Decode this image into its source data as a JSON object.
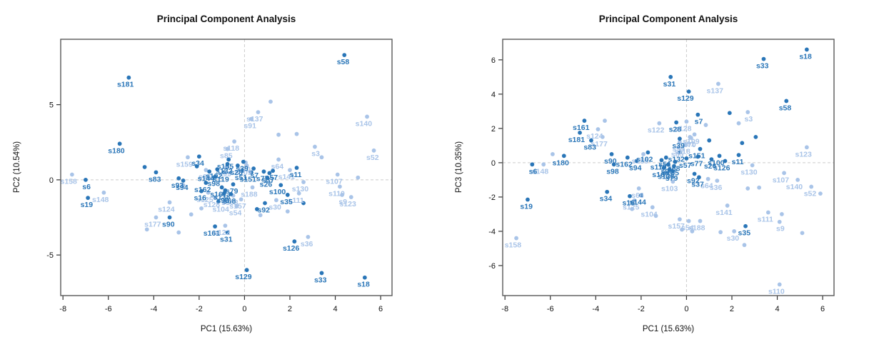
{
  "figure": {
    "background": "#ffffff",
    "colors": {
      "dark_group": "#2a76b8",
      "light_group": "#a9c4e8",
      "box_border": "#595959",
      "refline": "#cccccc",
      "tick_text": "#111111",
      "title_text": "#111111"
    }
  },
  "chart_data": [
    {
      "type": "scatter",
      "title": "Principal Component Analysis",
      "xlabel": "PC1 (15.63%)",
      "ylabel": "PC2 (10.54%)",
      "xlim": [
        -8.1,
        6.5
      ],
      "ylim": [
        -7.7,
        9.35
      ],
      "xticks": [
        -8,
        -6,
        -4,
        -2,
        0,
        2,
        4,
        6
      ],
      "yticks": [
        -5,
        0,
        5
      ],
      "reflines": {
        "x": 0,
        "y": 0
      },
      "grid": false,
      "legend": "none",
      "series": [
        {
          "name": "light-group",
          "color": "#a9c4e8",
          "points": [
            [
              "s158",
              -7.6,
              0.35
            ],
            [
              "s148",
              -6.2,
              -0.85
            ],
            [
              "s124",
              -3.3,
              -1.5
            ],
            [
              "s177",
              -3.9,
              -2.5
            ],
            [
              "s159",
              -2.5,
              1.5
            ],
            [
              "s118",
              -0.45,
              2.55
            ],
            [
              "s85",
              -0.75,
              2.05
            ],
            [
              "s91",
              0.3,
              4.05
            ],
            [
              "s137",
              0.6,
              4.5
            ],
            [
              "s140",
              5.4,
              4.2
            ],
            [
              "s52",
              5.7,
              1.95
            ],
            [
              "s3",
              3.1,
              2.2
            ],
            [
              "s64",
              1.5,
              1.35
            ],
            [
              "s141",
              2.0,
              0.65
            ],
            [
              "s107",
              4.1,
              0.35
            ],
            [
              "s110",
              4.2,
              -0.45
            ],
            [
              "s9",
              4.3,
              -1.0
            ],
            [
              "s123",
              4.7,
              -1.15
            ],
            [
              "s188",
              0.35,
              -0.5
            ],
            [
              "s122",
              -0.85,
              -3.05
            ],
            [
              "s36",
              2.8,
              -3.8
            ],
            [
              "s130",
              2.6,
              -0.15
            ],
            [
              "s109",
              0.1,
              0.95
            ],
            [
              "s70",
              0.05,
              1.15
            ],
            [
              "s128",
              -1.3,
              -1.2
            ],
            [
              "s54",
              -0.35,
              -1.75
            ],
            [
              "s104",
              -0.9,
              -1.5
            ],
            [
              "s157",
              -0.15,
              -1.3
            ],
            [
              "s125",
              -1.6,
              -0.85
            ],
            [
              "s111",
              2.4,
              -0.9
            ],
            [
              "s30",
              1.4,
              -1.35
            ],
            [
              "s103",
              -0.5,
              -1.05
            ],
            [
              "s66",
              -1.7,
              0.65
            ],
            [
              "s99",
              -0.8,
              0.85
            ],
            [
              1.15,
              5.2
            ],
            [
              -4.3,
              -3.3
            ],
            [
              -2.9,
              -3.5
            ],
            [
              1.5,
              3.0
            ],
            [
              2.3,
              3.05
            ],
            [
              3.4,
              1.5
            ],
            [
              -2.7,
              -0.35
            ],
            [
              -2.35,
              -2.3
            ],
            [
              0.7,
              -2.35
            ],
            [
              5.0,
              0.15
            ],
            [
              1.9,
              -2.1
            ],
            [
              -1.9,
              -1.9
            ]
          ]
        },
        {
          "name": "dark-group",
          "color": "#2a76b8",
          "points": [
            [
              "s58",
              4.4,
              8.3
            ],
            [
              "s181",
              -5.1,
              6.8
            ],
            [
              "s180",
              -5.5,
              2.4
            ],
            [
              "s83",
              -3.9,
              0.5
            ],
            [
              "s93",
              -2.9,
              0.1
            ],
            [
              "s94",
              -2.7,
              -0.05
            ],
            [
              "s6",
              -7.0,
              0.0
            ],
            [
              "s19",
              -6.9,
              -1.2
            ],
            [
              "s90",
              -3.3,
              -2.5
            ],
            [
              "s144",
              -1.55,
              0.55
            ],
            [
              "s162",
              -1.7,
              -0.2
            ],
            [
              "s16",
              -1.9,
              -0.75
            ],
            [
              "s161",
              -1.3,
              -3.1
            ],
            [
              "s31",
              -0.75,
              -3.5
            ],
            [
              "s129",
              0.1,
              -6.0
            ],
            [
              "s126",
              2.2,
              -4.1
            ],
            [
              "s33",
              3.4,
              -6.2
            ],
            [
              "s18",
              5.3,
              -6.5
            ],
            [
              "s100",
              1.6,
              -0.35
            ],
            [
              "s35",
              1.9,
              -1.0
            ],
            [
              "s92",
              0.9,
              -1.55
            ],
            [
              "s11",
              2.3,
              0.8
            ],
            [
              "s51",
              -0.1,
              0.6
            ],
            [
              "s119",
              -0.9,
              0.5
            ],
            [
              "s155",
              -0.7,
              1.35
            ],
            [
              "s132",
              -0.75,
              1.05
            ],
            [
              "s57",
              1.25,
              0.6
            ],
            [
              "s37",
              1.1,
              0.45
            ],
            [
              "s77",
              0.85,
              0.55
            ],
            [
              "s96",
              -0.9,
              -0.9
            ],
            [
              "s68",
              -0.6,
              -0.95
            ],
            [
              "s167",
              -1.0,
              -0.5
            ],
            [
              "s138",
              -0.85,
              -0.7
            ],
            [
              "s28",
              -0.3,
              0.95
            ],
            [
              "s39",
              -0.05,
              1.2
            ],
            [
              "s98",
              -1.3,
              0.2
            ],
            [
              "s79",
              -0.5,
              -0.3
            ],
            [
              "s151",
              0.3,
              0.5
            ],
            [
              "s26",
              1.0,
              0.15
            ],
            [
              "s102",
              -1.2,
              0.7
            ],
            [
              "s34",
              -2.0,
              1.55
            ],
            [
              "s7",
              0.4,
              0.75
            ],
            [
              -4.4,
              0.85
            ],
            [
              0.55,
              -1.95
            ],
            [
              2.6,
              -1.55
            ],
            [
              -1.15,
              -1.45
            ],
            [
              -2.1,
              0.9
            ]
          ]
        }
      ]
    },
    {
      "type": "scatter",
      "title": "Principal Component Analysis",
      "xlabel": "PC1 (15.63%)",
      "ylabel": "PC3 (10.35%)",
      "xlim": [
        -8.1,
        6.5
      ],
      "ylim": [
        -7.75,
        7.2
      ],
      "xticks": [
        -8,
        -6,
        -4,
        -2,
        0,
        2,
        4,
        6
      ],
      "yticks": [
        -6,
        -4,
        -2,
        0,
        2,
        4,
        6
      ],
      "reflines": {
        "x": 0,
        "y": 0
      },
      "grid": false,
      "legend": "none",
      "series": [
        {
          "name": "light-group",
          "color": "#a9c4e8",
          "points": [
            [
              "s158",
              -7.5,
              -4.4
            ],
            [
              "s148",
              -6.3,
              -0.1
            ],
            [
              "s124",
              -3.9,
              1.95
            ],
            [
              "s177",
              -3.7,
              1.5
            ],
            [
              "s128",
              0.0,
              2.4
            ],
            [
              "s137",
              1.4,
              4.6
            ],
            [
              "s3",
              2.7,
              2.95
            ],
            [
              "s123",
              5.3,
              0.9
            ],
            [
              "s107",
              4.3,
              -0.6
            ],
            [
              "s130",
              2.9,
              -0.15
            ],
            [
              "s140",
              4.9,
              -1.0
            ],
            [
              "s52",
              5.5,
              -1.4
            ],
            [
              "s110",
              4.1,
              -7.1
            ],
            [
              "s111",
              3.6,
              -2.9
            ],
            [
              "s9",
              4.1,
              -3.45
            ],
            [
              "s30",
              2.1,
              -4.0
            ],
            [
              "s141",
              1.8,
              -2.5
            ],
            [
              "s104",
              -1.5,
              -2.6
            ],
            [
              "s125",
              -2.3,
              -2.2
            ],
            [
              "s66",
              -2.1,
              -1.5
            ],
            [
              "s157",
              -0.3,
              -3.3
            ],
            [
              "s54",
              0.1,
              -3.4
            ],
            [
              "s188",
              0.6,
              -3.4
            ],
            [
              "s64",
              0.95,
              -0.95
            ],
            [
              "s36",
              1.35,
              -1.05
            ],
            [
              "s91",
              0.15,
              1.5
            ],
            [
              "s99",
              -0.3,
              1.2
            ],
            [
              "s109",
              0.35,
              1.65
            ],
            [
              "s70",
              0.2,
              1.45
            ],
            [
              "s85",
              -0.35,
              0.9
            ],
            [
              "s118",
              -0.05,
              1.05
            ],
            [
              "s103",
              -0.6,
              -1.1
            ],
            [
              "s159",
              -1.9,
              0.5
            ],
            [
              "s122",
              -1.2,
              2.3
            ],
            [
              -5.9,
              0.5
            ],
            [
              -3.6,
              2.45
            ],
            [
              2.3,
              2.3
            ],
            [
              0.85,
              2.2
            ],
            [
              -2.4,
              -2.7
            ],
            [
              -1.35,
              -3.1
            ],
            [
              -0.2,
              -3.9
            ],
            [
              0.25,
              -4.0
            ],
            [
              1.5,
              -4.05
            ],
            [
              2.55,
              -4.8
            ],
            [
              2.7,
              -1.5
            ],
            [
              3.2,
              -1.45
            ],
            [
              5.9,
              -1.8
            ],
            [
              5.1,
              -4.1
            ],
            [
              4.2,
              -3.0
            ]
          ]
        },
        {
          "name": "dark-group",
          "color": "#2a76b8",
          "points": [
            [
              "s18",
              5.3,
              6.6
            ],
            [
              "s33",
              3.4,
              6.05
            ],
            [
              "s58",
              4.4,
              3.6
            ],
            [
              "s31",
              -0.7,
              5.0
            ],
            [
              "s129",
              0.1,
              4.15
            ],
            [
              "s181",
              -4.7,
              1.75
            ],
            [
              "s83",
              -4.2,
              1.3
            ],
            [
              "s180",
              -5.4,
              0.4
            ],
            [
              "s6",
              -6.8,
              -0.1
            ],
            [
              "s19",
              -7.0,
              -2.15
            ],
            [
              "s34",
              -3.5,
              -1.7
            ],
            [
              "s16",
              -2.5,
              -1.95
            ],
            [
              "s144",
              -2.0,
              -1.9
            ],
            [
              "s90",
              -3.3,
              0.5
            ],
            [
              "s98",
              -3.2,
              -0.1
            ],
            [
              "s162",
              -2.6,
              0.3
            ],
            [
              "s94",
              -2.2,
              0.1
            ],
            [
              "s102",
              -1.7,
              0.6
            ],
            [
              "s28",
              -0.45,
              2.35
            ],
            [
              "s39",
              -0.3,
              1.4
            ],
            [
              "s151",
              0.6,
              0.8
            ],
            [
              "s77",
              0.5,
              0.35
            ],
            [
              "s100",
              1.45,
              0.4
            ],
            [
              "s11",
              2.3,
              0.45
            ],
            [
              "s126",
              1.7,
              0.1
            ],
            [
              "s92",
              0.35,
              -0.65
            ],
            [
              "s37",
              0.55,
              -0.85
            ],
            [
              "s79",
              -0.6,
              -0.5
            ],
            [
              "s35",
              2.6,
              -3.7
            ],
            [
              "s51",
              -0.9,
              0.3
            ],
            [
              "s119",
              -1.1,
              0.15
            ],
            [
              "s155",
              -0.55,
              -0.2
            ],
            [
              "s57",
              0.0,
              0.25
            ],
            [
              "s132",
              -0.3,
              0.6
            ],
            [
              "s96",
              -0.8,
              -0.1
            ],
            [
              "s68",
              -0.5,
              0.05
            ],
            [
              "s167",
              -1.0,
              -0.3
            ],
            [
              "s138",
              -0.75,
              -0.4
            ],
            [
              "s161",
              -4.5,
              2.45
            ],
            [
              "s26",
              1.1,
              0.2
            ],
            [
              "s7",
              0.5,
              2.8
            ],
            [
              1.0,
              1.3
            ],
            [
              2.45,
              1.15
            ],
            [
              1.9,
              2.9
            ],
            [
              3.05,
              1.5
            ]
          ]
        }
      ]
    }
  ]
}
